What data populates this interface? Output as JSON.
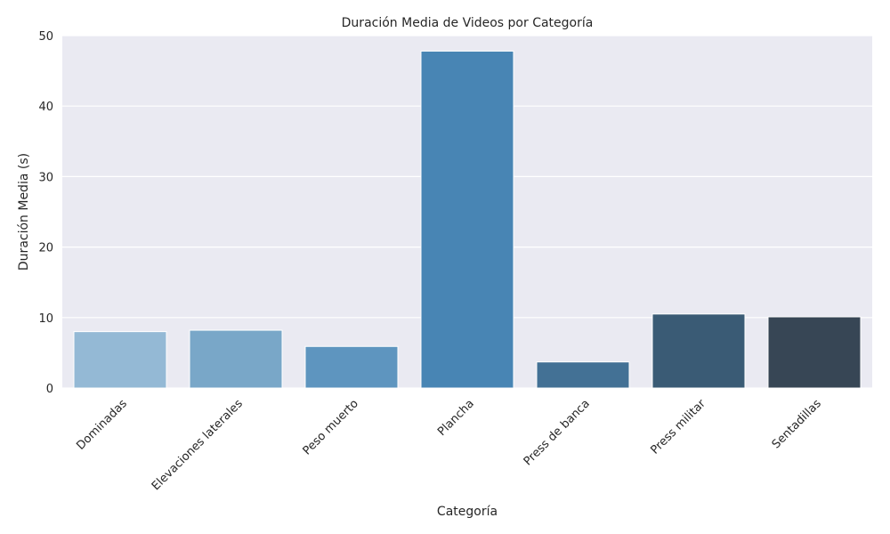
{
  "chart_data": {
    "type": "bar",
    "title": "Duración Media de Videos por Categoría",
    "xlabel": "Categoría",
    "ylabel": "Duración Media (s)",
    "ylim": [
      0,
      50
    ],
    "yticks": [
      0,
      10,
      20,
      30,
      40,
      50
    ],
    "grid": true,
    "categories": [
      "Dominadas",
      "Elevaciones laterales",
      "Peso muerto",
      "Plancha",
      "Press de banca",
      "Press militar",
      "Sentadillas"
    ],
    "values": [
      8.0,
      8.2,
      5.9,
      47.8,
      3.7,
      10.5,
      10.1
    ],
    "colors": [
      "#94b9d5",
      "#79a7c8",
      "#5e95bf",
      "#4885b4",
      "#437195",
      "#3a5b75",
      "#374655"
    ]
  }
}
